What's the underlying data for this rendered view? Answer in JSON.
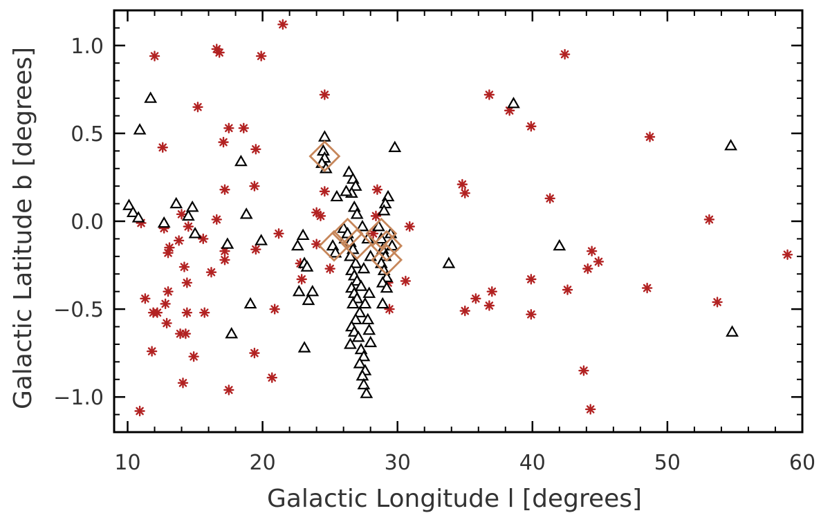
{
  "chart_data": {
    "type": "scatter",
    "title": "",
    "xlabel": "Galactic Longitude l [degrees]",
    "ylabel": "Galactic Latitude b [degrees]",
    "xlim": [
      9,
      60
    ],
    "ylim": [
      -1.2,
      1.2
    ],
    "grid": false,
    "legend": "none",
    "x_ticks": [
      10,
      20,
      30,
      40,
      50,
      60
    ],
    "x_tick_labels": [
      "10",
      "20",
      "30",
      "40",
      "50",
      "60"
    ],
    "y_ticks": [
      1.0,
      0.5,
      0.0,
      -0.5,
      -1.0
    ],
    "y_tick_labels": [
      "1.0",
      "0.5",
      "0.0",
      "−0.5",
      "−1.0"
    ],
    "x_minor_step": 2,
    "y_minor_step": 0.1,
    "series": [
      {
        "marker": "asterisk",
        "color": "#b22222",
        "points": [
          [
            21.5,
            1.12
          ],
          [
            12.0,
            0.94
          ],
          [
            16.6,
            0.98
          ],
          [
            16.8,
            0.96
          ],
          [
            19.9,
            0.94
          ],
          [
            42.4,
            0.95
          ],
          [
            24.6,
            0.72
          ],
          [
            36.8,
            0.72
          ],
          [
            15.2,
            0.65
          ],
          [
            38.3,
            0.63
          ],
          [
            39.9,
            0.54
          ],
          [
            17.5,
            0.53
          ],
          [
            18.6,
            0.53
          ],
          [
            48.7,
            0.48
          ],
          [
            17.1,
            0.45
          ],
          [
            12.6,
            0.42
          ],
          [
            19.5,
            0.41
          ],
          [
            34.8,
            0.21
          ],
          [
            19.4,
            0.2
          ],
          [
            24.6,
            0.17
          ],
          [
            17.2,
            0.18
          ],
          [
            28.5,
            0.18
          ],
          [
            35.0,
            0.16
          ],
          [
            41.3,
            0.13
          ],
          [
            24.0,
            0.05
          ],
          [
            24.3,
            0.03
          ],
          [
            14.0,
            0.04
          ],
          [
            11.0,
            -0.01
          ],
          [
            16.6,
            0.01
          ],
          [
            28.4,
            0.03
          ],
          [
            53.1,
            0.01
          ],
          [
            12.7,
            -0.04
          ],
          [
            14.5,
            -0.03
          ],
          [
            28.2,
            -0.07
          ],
          [
            21.2,
            -0.07
          ],
          [
            30.9,
            -0.03
          ],
          [
            15.6,
            -0.1
          ],
          [
            13.8,
            -0.11
          ],
          [
            13.1,
            -0.15
          ],
          [
            13.0,
            -0.18
          ],
          [
            17.2,
            -0.17
          ],
          [
            19.5,
            -0.16
          ],
          [
            24.0,
            -0.13
          ],
          [
            58.9,
            -0.19
          ],
          [
            17.2,
            -0.22
          ],
          [
            44.4,
            -0.17
          ],
          [
            22.8,
            -0.24
          ],
          [
            44.9,
            -0.23
          ],
          [
            14.2,
            -0.26
          ],
          [
            25.0,
            -0.27
          ],
          [
            44.1,
            -0.27
          ],
          [
            16.2,
            -0.29
          ],
          [
            22.9,
            -0.33
          ],
          [
            30.6,
            -0.34
          ],
          [
            14.4,
            -0.35
          ],
          [
            29.3,
            -0.35
          ],
          [
            39.9,
            -0.33
          ],
          [
            48.5,
            -0.38
          ],
          [
            42.6,
            -0.39
          ],
          [
            37.0,
            -0.4
          ],
          [
            13.0,
            -0.4
          ],
          [
            11.3,
            -0.44
          ],
          [
            35.8,
            -0.44
          ],
          [
            53.7,
            -0.46
          ],
          [
            12.8,
            -0.47
          ],
          [
            36.8,
            -0.48
          ],
          [
            20.9,
            -0.5
          ],
          [
            35.0,
            -0.51
          ],
          [
            29.4,
            -0.5
          ],
          [
            11.9,
            -0.52
          ],
          [
            12.2,
            -0.52
          ],
          [
            14.4,
            -0.52
          ],
          [
            15.7,
            -0.52
          ],
          [
            39.9,
            -0.53
          ],
          [
            12.9,
            -0.58
          ],
          [
            14.3,
            -0.64
          ],
          [
            13.9,
            -0.64
          ],
          [
            11.8,
            -0.74
          ],
          [
            19.4,
            -0.75
          ],
          [
            14.9,
            -0.77
          ],
          [
            20.7,
            -0.89
          ],
          [
            14.1,
            -0.92
          ],
          [
            17.5,
            -0.96
          ],
          [
            43.8,
            -0.85
          ],
          [
            44.3,
            -1.07
          ],
          [
            10.9,
            -1.08
          ]
        ]
      },
      {
        "marker": "triangle",
        "color": "#000000",
        "points": [
          [
            11.7,
            0.7
          ],
          [
            38.6,
            0.67
          ],
          [
            10.9,
            0.52
          ],
          [
            24.6,
            0.48
          ],
          [
            54.7,
            0.43
          ],
          [
            29.8,
            0.42
          ],
          [
            24.5,
            0.4
          ],
          [
            24.6,
            0.36
          ],
          [
            24.4,
            0.33
          ],
          [
            24.7,
            0.3
          ],
          [
            18.4,
            0.34
          ],
          [
            26.4,
            0.28
          ],
          [
            26.7,
            0.24
          ],
          [
            26.9,
            0.2
          ],
          [
            26.6,
            0.16
          ],
          [
            26.2,
            0.17
          ],
          [
            25.5,
            0.14
          ],
          [
            29.3,
            0.14
          ],
          [
            29.1,
            0.1
          ],
          [
            29.0,
            0.06
          ],
          [
            26.8,
            0.08
          ],
          [
            27.0,
            0.04
          ],
          [
            10.1,
            0.09
          ],
          [
            10.4,
            0.05
          ],
          [
            10.8,
            0.02
          ],
          [
            12.7,
            -0.01
          ],
          [
            13.6,
            0.1
          ],
          [
            14.5,
            0.03
          ],
          [
            14.8,
            0.08
          ],
          [
            15.0,
            -0.07
          ],
          [
            17.4,
            -0.13
          ],
          [
            18.8,
            0.04
          ],
          [
            19.9,
            -0.11
          ],
          [
            23.0,
            -0.08
          ],
          [
            22.6,
            -0.14
          ],
          [
            23.1,
            -0.24
          ],
          [
            23.3,
            -0.26
          ],
          [
            23.7,
            -0.4
          ],
          [
            22.7,
            -0.4
          ],
          [
            23.4,
            -0.45
          ],
          [
            19.1,
            -0.47
          ],
          [
            33.8,
            -0.24
          ],
          [
            42.0,
            -0.14
          ],
          [
            54.8,
            -0.63
          ],
          [
            17.7,
            -0.64
          ],
          [
            23.1,
            -0.72
          ],
          [
            25.2,
            -0.14
          ],
          [
            25.4,
            -0.18
          ],
          [
            26.0,
            -0.04
          ],
          [
            26.1,
            -0.1
          ],
          [
            26.3,
            -0.07
          ],
          [
            26.5,
            -0.12
          ],
          [
            26.7,
            -0.16
          ],
          [
            26.5,
            -0.2
          ],
          [
            26.9,
            -0.24
          ],
          [
            26.6,
            -0.28
          ],
          [
            26.8,
            -0.31
          ],
          [
            27.0,
            -0.34
          ],
          [
            26.6,
            -0.38
          ],
          [
            26.8,
            -0.41
          ],
          [
            27.0,
            -0.44
          ],
          [
            26.7,
            -0.47
          ],
          [
            27.2,
            -0.52
          ],
          [
            26.9,
            -0.56
          ],
          [
            26.6,
            -0.6
          ],
          [
            26.8,
            -0.63
          ],
          [
            26.5,
            -0.7
          ],
          [
            27.1,
            -0.66
          ],
          [
            27.3,
            -0.73
          ],
          [
            27.5,
            -0.77
          ],
          [
            27.2,
            -0.81
          ],
          [
            27.6,
            -0.85
          ],
          [
            27.4,
            -0.88
          ],
          [
            27.5,
            -0.93
          ],
          [
            27.7,
            -0.98
          ],
          [
            27.3,
            -0.37
          ],
          [
            27.5,
            -0.27
          ],
          [
            27.6,
            -0.47
          ],
          [
            27.9,
            -0.41
          ],
          [
            27.8,
            -0.56
          ],
          [
            27.9,
            -0.62
          ],
          [
            28.0,
            -0.69
          ],
          [
            27.4,
            -0.03
          ],
          [
            27.8,
            -0.1
          ],
          [
            28.6,
            -0.03
          ],
          [
            28.8,
            -0.1
          ],
          [
            28.9,
            -0.16
          ],
          [
            29.1,
            -0.2
          ],
          [
            28.8,
            -0.24
          ],
          [
            29.0,
            -0.28
          ],
          [
            29.2,
            -0.32
          ],
          [
            28.9,
            -0.35
          ],
          [
            29.2,
            -0.38
          ],
          [
            28.9,
            -0.47
          ],
          [
            28.0,
            -0.2
          ],
          [
            29.5,
            -0.07
          ],
          [
            29.6,
            -0.14
          ]
        ]
      },
      {
        "marker": "diamond",
        "color": "#c6865a",
        "points": [
          [
            24.6,
            0.37
          ],
          [
            25.3,
            -0.14
          ],
          [
            26.3,
            -0.07
          ],
          [
            27.0,
            -0.13
          ],
          [
            28.8,
            -0.07
          ],
          [
            29.2,
            -0.14
          ],
          [
            29.2,
            -0.22
          ]
        ]
      }
    ]
  }
}
